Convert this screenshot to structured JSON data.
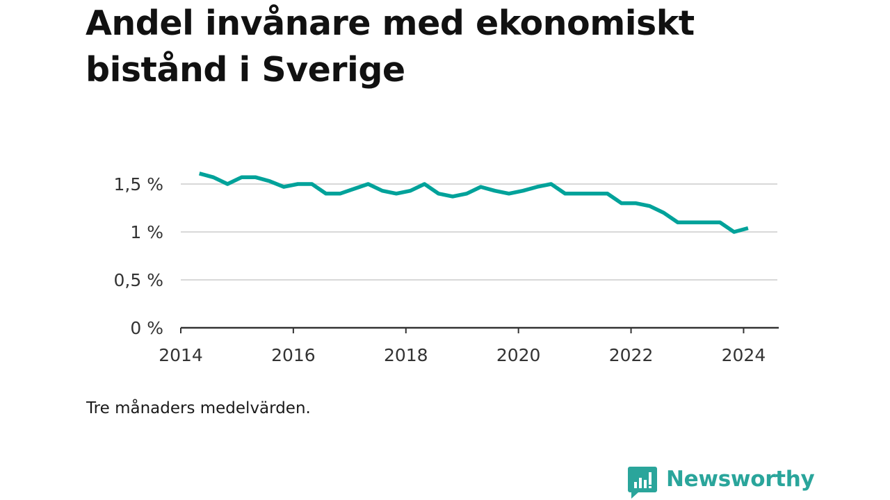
{
  "title": "Andel invånare med ekonomiskt bistånd i Sverige",
  "note": "Tre månaders medelvärden.",
  "brand": {
    "name": "Newsworthy",
    "icon": "newsworthy-logo-icon",
    "color": "#2aa59b"
  },
  "colors": {
    "line": "#00a29a",
    "grid": "#d8d8d8",
    "axis": "#333333",
    "text": "#333333"
  },
  "chart_data": {
    "type": "line",
    "title": "Andel invånare med ekonomiskt bistånd i Sverige",
    "xlabel": "",
    "ylabel": "",
    "xlim": [
      2014.0,
      2024.6
    ],
    "ylim": [
      0,
      1.5
    ],
    "x_ticks": [
      {
        "value": 2014,
        "label": "2014"
      },
      {
        "value": 2016,
        "label": "2016"
      },
      {
        "value": 2018,
        "label": "2018"
      },
      {
        "value": 2020,
        "label": "2020"
      },
      {
        "value": 2022,
        "label": "2022"
      },
      {
        "value": 2024,
        "label": "2024"
      }
    ],
    "y_ticks": [
      {
        "value": 0,
        "label": "0 %"
      },
      {
        "value": 0.5,
        "label": "0,5 %"
      },
      {
        "value": 1,
        "label": "1 %"
      },
      {
        "value": 1.5,
        "label": "1,5 %"
      }
    ],
    "grid": true,
    "series": [
      {
        "x": [
          2014.33,
          2014.58,
          2014.83,
          2015.08,
          2015.33,
          2015.58,
          2015.83,
          2016.08,
          2016.33,
          2016.58,
          2016.83,
          2017.08,
          2017.33,
          2017.58,
          2017.83,
          2018.08,
          2018.33,
          2018.58,
          2018.83,
          2019.08,
          2019.33,
          2019.58,
          2019.83,
          2020.08,
          2020.33,
          2020.58,
          2020.83,
          2021.08,
          2021.33,
          2021.58,
          2021.83,
          2022.08,
          2022.33,
          2022.58,
          2022.83,
          2023.08,
          2023.33,
          2023.58,
          2023.83,
          2024.08
        ],
        "values": [
          1.61,
          1.57,
          1.5,
          1.57,
          1.57,
          1.53,
          1.47,
          1.5,
          1.5,
          1.4,
          1.4,
          1.45,
          1.5,
          1.43,
          1.4,
          1.43,
          1.5,
          1.4,
          1.37,
          1.4,
          1.47,
          1.43,
          1.4,
          1.43,
          1.47,
          1.5,
          1.4,
          1.4,
          1.4,
          1.4,
          1.3,
          1.3,
          1.27,
          1.2,
          1.1,
          1.1,
          1.1,
          1.1,
          1.0,
          1.04
        ]
      }
    ]
  }
}
